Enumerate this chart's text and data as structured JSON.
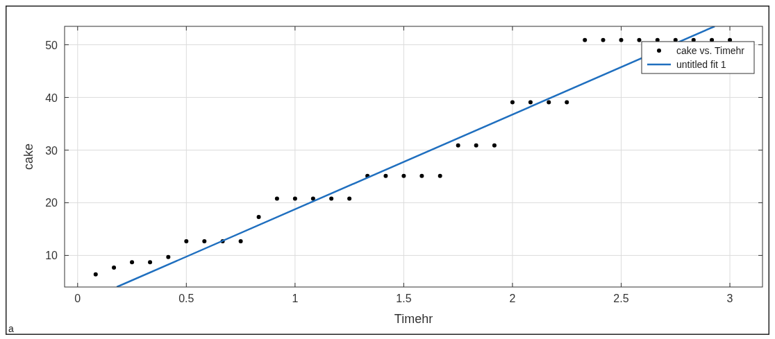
{
  "chart_data": {
    "type": "scatter",
    "xlabel": "Timehr",
    "ylabel": "cake",
    "annotations": [
      "a"
    ],
    "xlim": [
      -0.06,
      3.15
    ],
    "ylim": [
      4,
      53.5
    ],
    "xticks": [
      0,
      0.5,
      1,
      1.5,
      2,
      2.5,
      3
    ],
    "yticks": [
      10,
      20,
      30,
      40,
      50
    ],
    "grid": true,
    "legend": "top right",
    "series": [
      {
        "name": "cake vs. Timehr",
        "color": "#000000",
        "marker": "circle",
        "x": [
          0.083,
          0.167,
          0.25,
          0.333,
          0.417,
          0.5,
          0.583,
          0.667,
          0.75,
          0.833,
          0.917,
          1.0,
          1.083,
          1.167,
          1.25,
          1.333,
          1.417,
          1.5,
          1.583,
          1.667,
          1.75,
          1.833,
          1.917,
          2.0,
          2.083,
          2.167,
          2.25,
          2.333,
          2.417,
          2.5,
          2.583,
          2.667,
          2.75,
          2.833,
          2.917,
          3.0
        ],
        "values": [
          6.4,
          7.7,
          8.7,
          8.7,
          9.7,
          12.7,
          12.7,
          12.7,
          12.7,
          17.3,
          20.8,
          20.8,
          20.8,
          20.8,
          20.8,
          25.1,
          25.1,
          25.1,
          25.1,
          25.1,
          30.9,
          30.9,
          30.9,
          39.1,
          39.1,
          39.1,
          39.1,
          50.9,
          50.9,
          50.9,
          50.9,
          50.9,
          50.9,
          50.9,
          50.9,
          50.9
        ]
      },
      {
        "name": "untitled fit 1",
        "type": "line",
        "color": "#1f6fbf",
        "marker": "none",
        "line_style": "solid",
        "x": [
          0.18,
          2.93
        ],
        "values": [
          4,
          53.5
        ]
      }
    ]
  }
}
